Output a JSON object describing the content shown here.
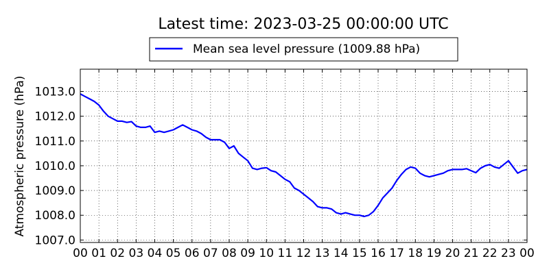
{
  "chart_data": {
    "type": "line",
    "title": "Latest time: 2023-03-25 00:00:00 UTC",
    "xlabel": "",
    "ylabel": "Atmospheric pressure (hPa)",
    "x_ticks": [
      "00",
      "01",
      "02",
      "03",
      "04",
      "05",
      "06",
      "07",
      "08",
      "09",
      "10",
      "11",
      "12",
      "13",
      "14",
      "15",
      "16",
      "17",
      "18",
      "19",
      "20",
      "21",
      "22",
      "23",
      "00"
    ],
    "xlim": [
      0,
      24
    ],
    "ylim": [
      1006.9,
      1013.9
    ],
    "y_ticks": [
      "1007.0",
      "1008.0",
      "1009.0",
      "1010.0",
      "1011.0",
      "1012.0",
      "1013.0"
    ],
    "grid": true,
    "legend_position": "top-center",
    "series": [
      {
        "name": "Mean sea level pressure (1009.88 hPa)",
        "color": "#0000ff",
        "x": [
          0.0,
          0.25,
          0.5,
          0.75,
          1.0,
          1.25,
          1.5,
          1.75,
          2.0,
          2.25,
          2.5,
          2.75,
          3.0,
          3.25,
          3.5,
          3.75,
          4.0,
          4.25,
          4.5,
          4.75,
          5.0,
          5.25,
          5.5,
          5.75,
          6.0,
          6.25,
          6.5,
          6.75,
          7.0,
          7.25,
          7.5,
          7.75,
          8.0,
          8.25,
          8.5,
          8.75,
          9.0,
          9.25,
          9.5,
          9.75,
          10.0,
          10.25,
          10.5,
          10.75,
          11.0,
          11.25,
          11.5,
          11.75,
          12.0,
          12.25,
          12.5,
          12.75,
          13.0,
          13.25,
          13.5,
          13.75,
          14.0,
          14.25,
          14.5,
          14.75,
          15.0,
          15.25,
          15.5,
          15.75,
          16.0,
          16.25,
          16.5,
          16.75,
          17.0,
          17.25,
          17.5,
          17.75,
          18.0,
          18.25,
          18.5,
          18.75,
          19.0,
          19.25,
          19.5,
          19.75,
          20.0,
          20.25,
          20.5,
          20.75,
          21.0,
          21.25,
          21.5,
          21.75,
          22.0,
          22.25,
          22.5,
          22.75,
          23.0,
          23.25,
          23.5,
          23.75,
          24.0
        ],
        "values": [
          1012.9,
          1012.8,
          1012.7,
          1012.6,
          1012.45,
          1012.2,
          1012.0,
          1011.9,
          1011.8,
          1011.8,
          1011.75,
          1011.78,
          1011.6,
          1011.55,
          1011.55,
          1011.6,
          1011.35,
          1011.4,
          1011.35,
          1011.4,
          1011.45,
          1011.55,
          1011.65,
          1011.55,
          1011.45,
          1011.4,
          1011.3,
          1011.15,
          1011.05,
          1011.05,
          1011.05,
          1010.95,
          1010.7,
          1010.8,
          1010.5,
          1010.35,
          1010.2,
          1009.9,
          1009.85,
          1009.9,
          1009.92,
          1009.8,
          1009.75,
          1009.6,
          1009.45,
          1009.35,
          1009.1,
          1009.0,
          1008.85,
          1008.7,
          1008.55,
          1008.35,
          1008.3,
          1008.3,
          1008.25,
          1008.1,
          1008.05,
          1008.1,
          1008.05,
          1008.0,
          1008.0,
          1007.95,
          1008.0,
          1008.15,
          1008.4,
          1008.7,
          1008.9,
          1009.1,
          1009.4,
          1009.65,
          1009.85,
          1009.95,
          1009.9,
          1009.7,
          1009.6,
          1009.55,
          1009.6,
          1009.65,
          1009.7,
          1009.8,
          1009.85,
          1009.85,
          1009.85,
          1009.88,
          1009.8,
          1009.72,
          1009.9,
          1010.0,
          1010.05,
          1009.95,
          1009.9,
          1010.05,
          1010.2,
          1009.95,
          1009.7,
          1009.8,
          1009.85
        ]
      }
    ]
  }
}
